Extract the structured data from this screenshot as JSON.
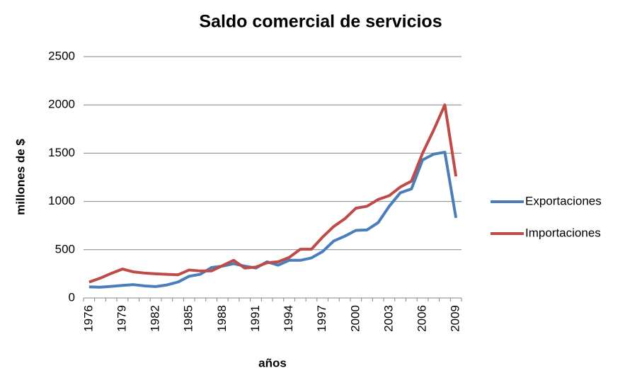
{
  "chart_data": {
    "type": "line",
    "title": "Saldo comercial de servicios",
    "x_label": "años",
    "y_label": "millones de $",
    "categories": [
      "1976",
      null,
      null,
      "1979",
      null,
      null,
      "1982",
      null,
      null,
      "1985",
      null,
      null,
      "1988",
      null,
      null,
      "1991",
      null,
      null,
      "1994",
      null,
      null,
      "1997",
      null,
      null,
      "2000",
      null,
      null,
      "2003",
      null,
      null,
      "2006",
      null,
      null,
      "2009"
    ],
    "series": [
      {
        "name": "Exportaciones",
        "color": "#4a7ebb",
        "values": [
          115,
          112,
          120,
          130,
          138,
          125,
          118,
          135,
          165,
          225,
          245,
          315,
          330,
          355,
          330,
          310,
          375,
          340,
          390,
          390,
          415,
          480,
          590,
          640,
          700,
          705,
          780,
          950,
          1090,
          1130,
          1430,
          1490,
          1510,
          830
        ]
      },
      {
        "name": "Importaciones",
        "color": "#be4b48",
        "values": [
          165,
          205,
          255,
          300,
          270,
          258,
          250,
          245,
          240,
          290,
          280,
          280,
          335,
          390,
          310,
          320,
          365,
          375,
          420,
          505,
          505,
          630,
          740,
          820,
          930,
          950,
          1020,
          1060,
          1150,
          1210,
          1500,
          1740,
          2000,
          1260
        ]
      }
    ],
    "ylim": [
      0,
      2500
    ],
    "yticks": [
      0,
      500,
      1000,
      1500,
      2000,
      2500
    ],
    "grid": true,
    "legend": "right"
  }
}
